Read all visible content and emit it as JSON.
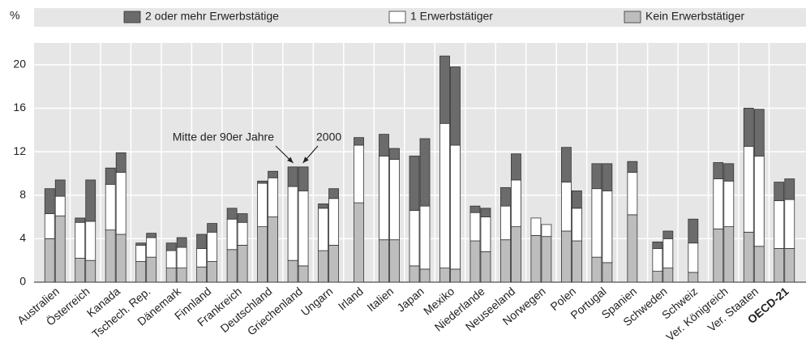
{
  "chart_data": {
    "type": "bar",
    "stacked": true,
    "y_label": "%",
    "annotations": [
      "Mitte der 90er Jahre",
      "2000"
    ],
    "categories": [
      "Australien",
      "Österreich",
      "Kanada",
      "Tschech. Rep.",
      "Dänemark",
      "Finnland",
      "Frankreich",
      "Deutschland",
      "Griechenland",
      "Ungarn",
      "Irland",
      "Italien",
      "Japan",
      "Mexiko",
      "Niederlande",
      "Neuseeland",
      "Norwegen",
      "Polen",
      "Portugal",
      "Spanien",
      "Schweden",
      "Schweiz",
      "Ver. Königreich",
      "Ver. Staaten",
      "OECD-21"
    ],
    "highlight_index": 24,
    "series": [
      {
        "name": "Kein Erwerbstätiger",
        "color": "#bdbdbd",
        "values": [
          [
            4.0,
            6.1
          ],
          [
            2.2,
            2.0
          ],
          [
            4.8,
            4.4
          ],
          [
            1.9,
            2.3
          ],
          [
            1.3,
            1.3
          ],
          [
            1.4,
            1.9
          ],
          [
            3.0,
            3.4
          ],
          [
            5.1,
            6.0
          ],
          [
            2.0,
            1.5
          ],
          [
            2.9,
            3.4
          ],
          [
            7.3,
            null
          ],
          [
            3.9,
            3.9
          ],
          [
            1.5,
            1.2
          ],
          [
            1.3,
            1.2
          ],
          [
            3.8,
            2.8
          ],
          [
            3.9,
            5.1
          ],
          [
            4.3,
            4.2
          ],
          [
            4.7,
            3.8
          ],
          [
            2.3,
            1.8
          ],
          [
            6.2,
            null
          ],
          [
            1.0,
            1.3
          ],
          [
            0.9,
            null
          ],
          [
            4.9,
            5.1
          ],
          [
            4.6,
            3.3
          ],
          [
            3.1,
            3.1
          ]
        ]
      },
      {
        "name": "1 Erwerbstätiger",
        "color": "#ffffff",
        "values": [
          [
            2.3,
            1.8
          ],
          [
            3.3,
            3.6
          ],
          [
            4.2,
            5.7
          ],
          [
            1.5,
            1.8
          ],
          [
            1.6,
            1.9
          ],
          [
            1.7,
            2.7
          ],
          [
            2.8,
            2.1
          ],
          [
            4.0,
            3.6
          ],
          [
            6.8,
            6.9
          ],
          [
            3.9,
            4.3
          ],
          [
            5.3,
            null
          ],
          [
            7.7,
            7.4
          ],
          [
            5.1,
            5.8
          ],
          [
            13.3,
            11.4
          ],
          [
            2.6,
            3.2
          ],
          [
            3.1,
            4.3
          ],
          [
            1.6,
            1.1
          ],
          [
            4.5,
            3.0
          ],
          [
            6.3,
            6.6
          ],
          [
            3.9,
            null
          ],
          [
            2.1,
            2.7
          ],
          [
            2.7,
            null
          ],
          [
            4.6,
            4.2
          ],
          [
            7.9,
            8.3
          ],
          [
            4.4,
            4.5
          ]
        ]
      },
      {
        "name": "2 oder mehr Erwerbstätige",
        "color": "#6b6b6b",
        "values": [
          [
            2.3,
            1.5
          ],
          [
            0.4,
            3.8
          ],
          [
            1.5,
            1.8
          ],
          [
            0.2,
            0.4
          ],
          [
            0.7,
            0.9
          ],
          [
            1.3,
            0.8
          ],
          [
            1.0,
            0.8
          ],
          [
            0.2,
            0.6
          ],
          [
            1.8,
            2.2
          ],
          [
            0.4,
            0.9
          ],
          [
            0.7,
            null
          ],
          [
            2.0,
            1.0
          ],
          [
            5.0,
            6.2
          ],
          [
            6.2,
            7.2
          ],
          [
            0.6,
            0.8
          ],
          [
            1.7,
            2.4
          ],
          [
            0,
            0
          ],
          [
            3.2,
            1.6
          ],
          [
            2.3,
            2.5
          ],
          [
            1.0,
            null
          ],
          [
            0.6,
            0.7
          ],
          [
            2.2,
            null
          ],
          [
            1.5,
            1.6
          ],
          [
            3.5,
            4.3
          ],
          [
            1.7,
            1.9
          ]
        ]
      }
    ],
    "legend_order": [
      2,
      1,
      0
    ],
    "ylim": [
      0,
      22
    ],
    "yticks": [
      0,
      4,
      8,
      12,
      16,
      20
    ],
    "grid": true
  }
}
